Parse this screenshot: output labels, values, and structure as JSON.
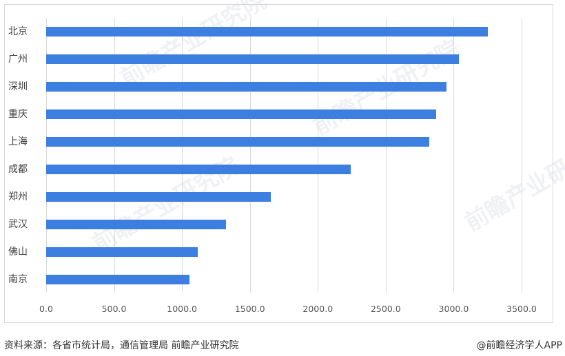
{
  "chart_data": {
    "type": "bar",
    "orientation": "horizontal",
    "title": "",
    "xlabel": "",
    "ylabel": "",
    "categories": [
      "北京",
      "广州",
      "深圳",
      "重庆",
      "上海",
      "成都",
      "郑州",
      "武汉",
      "佛山",
      "南京"
    ],
    "values": [
      3252,
      3039,
      2948,
      2872,
      2821,
      2243,
      1654,
      1324,
      1116,
      1055
    ],
    "xlim": [
      0,
      3500
    ],
    "x_ticks": [
      "0.0",
      "500.0",
      "1000.0",
      "1500.0",
      "2000.0",
      "2500.0",
      "3000.0",
      "3500.0"
    ],
    "grid": "vertical",
    "legend": "none",
    "bar_color": "#3c7fe0"
  },
  "footer": {
    "source": "资料来源：各省市统计局，通信管理局 前瞻产业研究院",
    "credit": "@前瞻经济学人APP"
  },
  "watermark": {
    "text": "前瞻产业研究院"
  }
}
